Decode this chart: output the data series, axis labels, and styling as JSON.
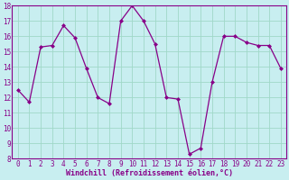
{
  "x": [
    0,
    1,
    2,
    3,
    4,
    5,
    6,
    7,
    8,
    9,
    10,
    11,
    12,
    13,
    14,
    15,
    16,
    17,
    18,
    19,
    20,
    21,
    22,
    23
  ],
  "y": [
    12.5,
    11.7,
    15.3,
    15.4,
    16.7,
    15.9,
    13.9,
    12.0,
    11.6,
    17.0,
    18.0,
    17.0,
    15.5,
    12.0,
    11.9,
    8.3,
    8.7,
    13.0,
    16.0,
    16.0,
    15.6,
    15.4,
    15.4,
    13.9
  ],
  "line_color": "#880088",
  "marker": "D",
  "marker_size": 2.0,
  "bg_color": "#c8eef0",
  "grid_color": "#a0d8c8",
  "xlabel": "Windchill (Refroidissement éolien,°C)",
  "ylabel": "",
  "ylim": [
    8,
    18
  ],
  "xlim_min": -0.5,
  "xlim_max": 23.5,
  "yticks": [
    8,
    9,
    10,
    11,
    12,
    13,
    14,
    15,
    16,
    17,
    18
  ],
  "xticks": [
    0,
    1,
    2,
    3,
    4,
    5,
    6,
    7,
    8,
    9,
    10,
    11,
    12,
    13,
    14,
    15,
    16,
    17,
    18,
    19,
    20,
    21,
    22,
    23
  ],
  "tick_fontsize": 5.5,
  "xlabel_fontsize": 6.0,
  "linewidth": 0.9
}
